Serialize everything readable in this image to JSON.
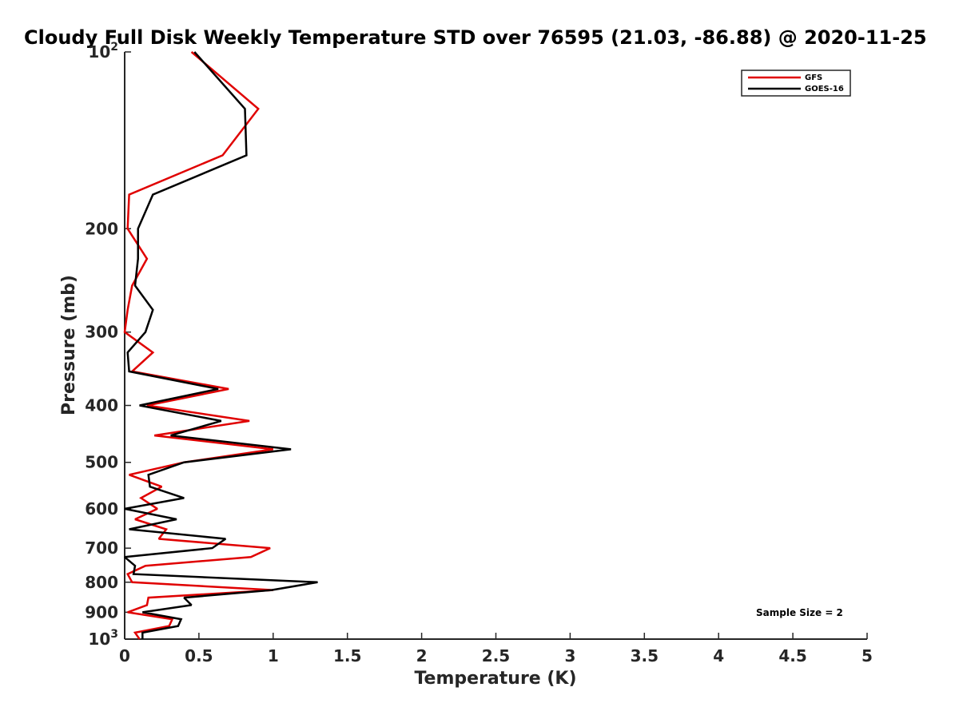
{
  "chart_data": {
    "type": "line",
    "title": "Cloudy Full Disk Weekly Temperature STD over 76595 (21.03, -86.88) @ 2020-11-25",
    "xlabel": "Temperature (K)",
    "ylabel": "Pressure (mb)",
    "xlim": [
      0,
      5
    ],
    "ylim": [
      100,
      1000
    ],
    "yscale": "log",
    "y_reversed": true,
    "x_ticks": [
      0,
      0.5,
      1,
      1.5,
      2,
      2.5,
      3,
      3.5,
      4,
      4.5,
      5
    ],
    "x_tick_labels": [
      "0",
      "0.5",
      "1",
      "1.5",
      "2",
      "2.5",
      "3",
      "3.5",
      "4",
      "4.5",
      "5"
    ],
    "y_ticks": [
      {
        "value": 100,
        "base": "10",
        "exp": "2"
      },
      {
        "value": 200,
        "label": "200"
      },
      {
        "value": 300,
        "label": "300"
      },
      {
        "value": 400,
        "label": "400"
      },
      {
        "value": 500,
        "label": "500"
      },
      {
        "value": 600,
        "label": "600"
      },
      {
        "value": 700,
        "label": "700"
      },
      {
        "value": 800,
        "label": "800"
      },
      {
        "value": 900,
        "label": "900"
      },
      {
        "value": 1000,
        "base": "10",
        "exp": "3"
      }
    ],
    "legend_position": "top-right",
    "annotation": "Sample Size = 2",
    "series": [
      {
        "name": "GFS",
        "color": "#e00000",
        "pressure": [
          100,
          125,
          150,
          175,
          200,
          225,
          250,
          275,
          300,
          325,
          350,
          375,
          400,
          425,
          450,
          475,
          500,
          525,
          550,
          575,
          600,
          625,
          650,
          675,
          700,
          725,
          750,
          775,
          800,
          825,
          850,
          875,
          900,
          925,
          950,
          975,
          1000
        ],
        "values": [
          0.45,
          0.9,
          0.66,
          0.03,
          0.02,
          0.15,
          0.05,
          0.02,
          0.0,
          0.19,
          0.05,
          0.7,
          0.15,
          0.84,
          0.2,
          1.0,
          0.4,
          0.03,
          0.25,
          0.11,
          0.22,
          0.07,
          0.28,
          0.23,
          0.98,
          0.85,
          0.14,
          0.02,
          0.05,
          1.0,
          0.16,
          0.15,
          0.02,
          0.32,
          0.3,
          0.07,
          0.1
        ],
        "stroke_width": 2.5
      },
      {
        "name": "GOES-16",
        "color": "#000000",
        "pressure": [
          100,
          125,
          150,
          175,
          200,
          225,
          250,
          275,
          300,
          325,
          350,
          375,
          400,
          425,
          450,
          475,
          500,
          525,
          550,
          575,
          600,
          625,
          650,
          675,
          700,
          725,
          750,
          775,
          800,
          825,
          850,
          875,
          900,
          925,
          950,
          975,
          1000
        ],
        "values": [
          0.47,
          0.81,
          0.82,
          0.19,
          0.09,
          0.09,
          0.07,
          0.19,
          0.14,
          0.02,
          0.03,
          0.63,
          0.1,
          0.65,
          0.31,
          1.12,
          0.4,
          0.16,
          0.17,
          0.4,
          0.0,
          0.35,
          0.03,
          0.68,
          0.59,
          0.0,
          0.07,
          0.06,
          1.3,
          0.99,
          0.4,
          0.45,
          0.12,
          0.38,
          0.36,
          0.12,
          0.12
        ],
        "stroke_width": 2.5
      }
    ]
  }
}
